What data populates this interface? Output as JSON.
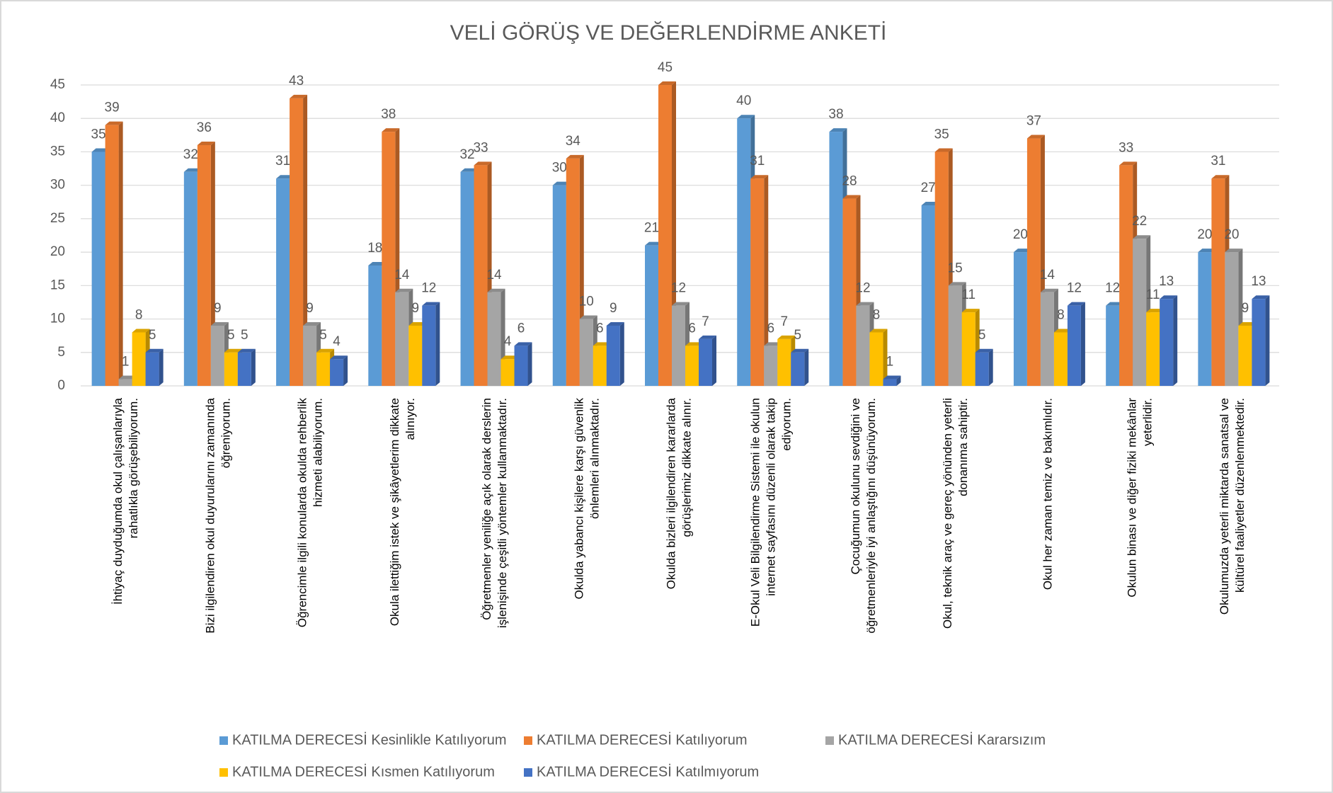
{
  "chart_data": {
    "type": "bar3d",
    "title": "VELİ GÖRÜŞ VE DEĞERLENDİRME ANKETİ",
    "categories": [
      "İhtiyaç duyduğumda okul çalışanlarıyla rahatlıkla görüşebiliyorum.",
      "Bizi ilgilendiren okul duyurularını zamanında öğreniyorum.",
      "Öğrencimle ilgili konularda okulda rehberlik hizmeti alabiliyorum.",
      "Okula ilettiğim istek ve şikâyetlerim dikkate alınıyor.",
      "Öğretmenler yeniliğe açık olarak derslerin işlenişinde çeşitli yöntemler kullanmaktadır.",
      "Okulda yabancı kişilere karşı güvenlik önlemleri alınmaktadır.",
      "Okulda bizleri ilgilendiren kararlarda görüşlerimiz dikkate alınır.",
      "E-Okul Veli Bilgilendirme Sistemi ile okulun internet sayfasını düzenli olarak takip ediyorum.",
      "Çocuğumun okulunu sevdiğini ve öğretmenleriyle iyi anlaştığını düşünüyorum.",
      "Okul, teknik araç ve gereç yönünden yeterli donanıma sahiptir.",
      "Okul her zaman temiz ve bakımlıdır.",
      "Okulun binası ve diğer fiziki mekânlar yeterlidir.",
      "Okulumuzda yeterli miktarda sanatsal ve kültürel faaliyetler düzenlenmektedir."
    ],
    "series": [
      {
        "name": "KATILMA DERECESİ Kesinlikle Katılıyorum",
        "color": "#5b9bd5",
        "values": [
          35,
          32,
          31,
          18,
          32,
          30,
          21,
          40,
          38,
          27,
          20,
          12,
          20
        ]
      },
      {
        "name": "KATILMA DERECESİ Katılıyorum",
        "color": "#ed7d31",
        "values": [
          39,
          36,
          43,
          38,
          33,
          34,
          45,
          31,
          28,
          35,
          37,
          33,
          31
        ]
      },
      {
        "name": "KATILMA DERECESİ Kararsızım",
        "color": "#a5a5a5",
        "values": [
          1,
          9,
          9,
          14,
          14,
          10,
          12,
          6,
          12,
          15,
          14,
          22,
          20
        ]
      },
      {
        "name": "KATILMA DERECESİ Kısmen Katılıyorum",
        "color": "#ffc000",
        "values": [
          8,
          5,
          5,
          9,
          4,
          6,
          6,
          7,
          8,
          11,
          8,
          11,
          9
        ]
      },
      {
        "name": "KATILMA DERECESİ Katılmıyorum",
        "color": "#4472c4",
        "values": [
          5,
          5,
          4,
          12,
          6,
          9,
          7,
          5,
          1,
          5,
          12,
          13,
          13
        ]
      }
    ],
    "ylim": [
      0,
      45
    ],
    "yticks": [
      0,
      5,
      10,
      15,
      20,
      25,
      30,
      35,
      40,
      45
    ],
    "grid": true,
    "legend": "bottom"
  }
}
